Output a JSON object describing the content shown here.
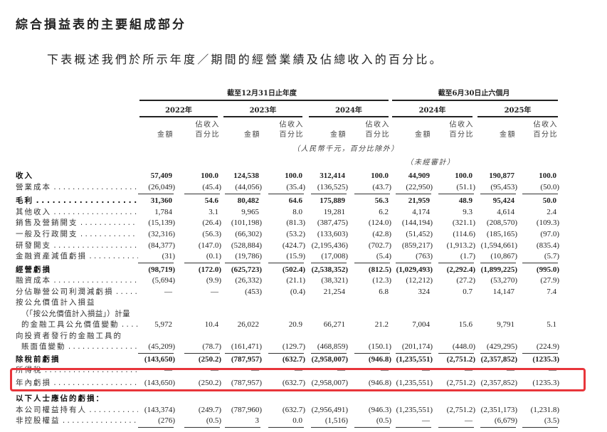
{
  "title": "綜合損益表的主要組成部分",
  "subtitle": "下表概述我們於所示年度／期間的經營業績及佔總收入的百分比。",
  "header": {
    "period_annual": "截至12月31日止年度",
    "period_six_months": "截至6月30日止六個月",
    "years": [
      "2022年",
      "2023年",
      "2024年",
      "2024年",
      "2025年"
    ],
    "amount_label": "金額",
    "pct_label_line1": "佔收入",
    "pct_label_line2": "百分比",
    "unit_note": "（人民幣千元，百分比除外）",
    "unaudited_note": "（未經審計）"
  },
  "highlight_color": "#e8353b",
  "rows": [
    {
      "label": "收入",
      "style": "bold",
      "values": [
        "57,409",
        "100.0",
        "124,538",
        "100.0",
        "312,414",
        "100.0",
        "44,909",
        "100.0",
        "190,877",
        "100.0"
      ]
    },
    {
      "label": "營業成本",
      "leader": true,
      "rule": "single",
      "values": [
        "(26,049)",
        "(45.4)",
        "(44,056)",
        "(35.4)",
        "(136,525)",
        "(43.7)",
        "(22,950)",
        "(51.1)",
        "(95,453)",
        "(50.0)"
      ]
    },
    {
      "label": "毛利",
      "style": "bold",
      "leader": true,
      "values": [
        "31,360",
        "54.6",
        "80,482",
        "64.6",
        "175,889",
        "56.3",
        "21,959",
        "48.9",
        "95,424",
        "50.0"
      ]
    },
    {
      "label": "其他收入",
      "leader": true,
      "values": [
        "1,784",
        "3.1",
        "9,965",
        "8.0",
        "19,281",
        "6.2",
        "4,174",
        "9.3",
        "4,614",
        "2.4"
      ]
    },
    {
      "label": "銷售及營銷開支",
      "leader": true,
      "values": [
        "(15,139)",
        "(26.4)",
        "(101,198)",
        "(81.3)",
        "(387,475)",
        "(124.0)",
        "(144,194)",
        "(321.1)",
        "(208,570)",
        "(109.3)"
      ]
    },
    {
      "label": "一般及行政開支",
      "leader": true,
      "values": [
        "(32,316)",
        "(56.3)",
        "(66,302)",
        "(53.2)",
        "(133,603)",
        "(42.8)",
        "(51,452)",
        "(114.6)",
        "(185,165)",
        "(97.0)"
      ]
    },
    {
      "label": "研發開支",
      "leader": true,
      "values": [
        "(84,377)",
        "(147.0)",
        "(528,884)",
        "(424.7)",
        "(2,195,436)",
        "(702.7)",
        "(859,217)",
        "(1,913.2)",
        "(1,594,661)",
        "(835.4)"
      ]
    },
    {
      "label": "金融資產減值虧損",
      "leader": true,
      "rule": "single",
      "values": [
        "(31)",
        "(0.1)",
        "(19,786)",
        "(15.9)",
        "(17,008)",
        "(5.4)",
        "(763)",
        "(1.7)",
        "(10,867)",
        "(5.7)"
      ]
    },
    {
      "label": "經營虧損",
      "style": "bold",
      "values": [
        "(98,719)",
        "(172.0)",
        "(625,723)",
        "(502.4)",
        "(2,538,352)",
        "(812.5)",
        "(1,029,493)",
        "(2,292.4)",
        "(1,899,225)",
        "(995.0)"
      ]
    },
    {
      "label": "融資成本",
      "leader": true,
      "values": [
        "(5,694)",
        "(9.9)",
        "(26,332)",
        "(21.1)",
        "(38,321)",
        "(12.3)",
        "(12,212)",
        "(27.2)",
        "(53,270)",
        "(27.9)"
      ]
    },
    {
      "label": "分佔聯營公司利潤減虧損",
      "leader": true,
      "values": [
        "—",
        "—",
        "(453)",
        "(0.4)",
        "21,254",
        "6.8",
        "324",
        "0.7",
        "14,147",
        "7.4"
      ]
    },
    {
      "label": "按公允價值計入損益",
      "values": [
        "",
        "",
        "",
        "",
        "",
        "",
        "",
        "",
        "",
        ""
      ]
    },
    {
      "label": "（「按公允價值計入損益」）計量",
      "indent": true,
      "values": [
        "",
        "",
        "",
        "",
        "",
        "",
        "",
        "",
        "",
        ""
      ]
    },
    {
      "label": "的金融工具公允價值變動",
      "indent": true,
      "leader": true,
      "values": [
        "5,972",
        "10.4",
        "26,022",
        "20.9",
        "66,271",
        "21.2",
        "7,004",
        "15.6",
        "9,791",
        "5.1"
      ]
    },
    {
      "label": "向投資者發行的金融工具的",
      "values": [
        "",
        "",
        "",
        "",
        "",
        "",
        "",
        "",
        "",
        ""
      ]
    },
    {
      "label": "賬面值變動",
      "indent": true,
      "leader": true,
      "rule": "single",
      "values": [
        "(45,209)",
        "(78.7)",
        "(161,471)",
        "(129.7)",
        "(468,859)",
        "(150.1)",
        "(201,174)",
        "(448.0)",
        "(429,295)",
        "(224.9)"
      ]
    },
    {
      "label": "除稅前虧損",
      "style": "bold",
      "values": [
        "(143,650)",
        "(250.2)",
        "(787,957)",
        "(632.7)",
        "(2,958,007)",
        "(946.8)",
        "(1,235,551)",
        "(2,751.2)",
        "(2,357,852)",
        "(1235.3)"
      ]
    },
    {
      "label": "所得稅",
      "leader": true,
      "values": [
        "—",
        "—",
        "—",
        "—",
        "—",
        "—",
        "—",
        "—",
        "—",
        "—"
      ]
    },
    {
      "label": "年內虧損",
      "leader": true,
      "rule": "double",
      "highlighted": true,
      "values": [
        "(143,650)",
        "(250.2)",
        "(787,957)",
        "(632.7)",
        "(2,958,007)",
        "(946.8)",
        "(1,235,551)",
        "(2,751.2)",
        "(2,357,852)",
        "(1235.3)"
      ]
    },
    {
      "label": "以下人士應佔的虧損：",
      "style": "bold",
      "values": [
        "",
        "",
        "",
        "",
        "",
        "",
        "",
        "",
        "",
        ""
      ]
    },
    {
      "label": "本公司權益持有人",
      "leader": true,
      "values": [
        "(143,374)",
        "(249.7)",
        "(787,960)",
        "(632.7)",
        "(2,956,491)",
        "(946.3)",
        "(1,235,551)",
        "(2,751.2)",
        "(2,351,173)",
        "(1,231.8)"
      ]
    },
    {
      "label": "非控股權益",
      "leader": true,
      "rule": "single",
      "values": [
        "(276)",
        "(0.5)",
        "3",
        "0.0",
        "(1,516)",
        "(0.5)",
        "—",
        "—",
        "(6,679)",
        "(3.5)"
      ]
    }
  ]
}
